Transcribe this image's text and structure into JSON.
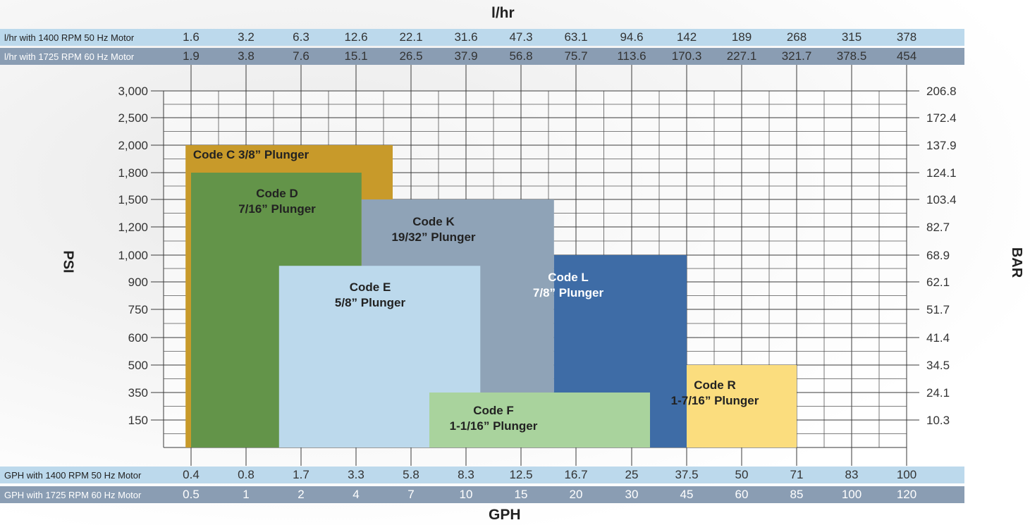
{
  "top_axis_title": "l/hr",
  "bottom_axis_title": "GPH",
  "left_axis_title": "PSI",
  "right_axis_title": "BAR",
  "bands": {
    "lhr_50hz": {
      "label": "l/hr with 1400 RPM 50 Hz Motor",
      "values": [
        "1.6",
        "3.2",
        "6.3",
        "12.6",
        "22.1",
        "31.6",
        "47.3",
        "63.1",
        "94.6",
        "142",
        "189",
        "268",
        "315",
        "378"
      ]
    },
    "lhr_60hz": {
      "label": "l/hr with 1725 RPM 60 Hz Motor",
      "values": [
        "1.9",
        "3.8",
        "7.6",
        "15.1",
        "26.5",
        "37.9",
        "56.8",
        "75.7",
        "113.6",
        "170.3",
        "227.1",
        "321.7",
        "378.5",
        "454"
      ]
    },
    "gph_50hz": {
      "label": "GPH with 1400 RPM 50 Hz Motor",
      "values": [
        "0.4",
        "0.8",
        "1.7",
        "3.3",
        "5.8",
        "8.3",
        "12.5",
        "16.7",
        "25",
        "37.5",
        "50",
        "71",
        "83",
        "100"
      ]
    },
    "gph_60hz": {
      "label": "GPH with 1725 RPM 60 Hz Motor",
      "values": [
        "0.5",
        "1",
        "2",
        "4",
        "7",
        "10",
        "15",
        "20",
        "30",
        "45",
        "60",
        "85",
        "100",
        "120"
      ]
    }
  },
  "chart_data": {
    "type": "bar",
    "x_ticks_gph_60hz": [
      "0.5",
      "1",
      "2",
      "4",
      "7",
      "10",
      "15",
      "20",
      "30",
      "45",
      "60",
      "85",
      "100",
      "120"
    ],
    "y_ticks_psi": [
      "3,000",
      "2,500",
      "2,000",
      "1,800",
      "1,500",
      "1,200",
      "1,000",
      "900",
      "750",
      "600",
      "500",
      "350",
      "150"
    ],
    "y_ticks_bar": [
      "206.8",
      "172.4",
      "137.9",
      "124.1",
      "103.4",
      "82.7",
      "68.9",
      "62.1",
      "51.7",
      "41.4",
      "34.5",
      "24.1",
      "10.3"
    ],
    "grid": true,
    "x_min_gph_60hz": 0.45,
    "series": [
      {
        "name": "Code C 3/8” Plunger",
        "label_lines": [
          "Code C  3/8” Plunger"
        ],
        "gph_60hz_min": 0.45,
        "gph_60hz_max": 6.0,
        "psi_max": "2,000",
        "color": "#c89a2a"
      },
      {
        "name": "Code D 7/16” Plunger",
        "label_lines": [
          "Code D",
          "7/16” Plunger"
        ],
        "gph_60hz_min": 0.5,
        "gph_60hz_max": 4.3,
        "psi_max": "1,800",
        "color": "#639449"
      },
      {
        "name": "Code K 19/32” Plunger",
        "label_lines": [
          "Code K",
          "19/32” Plunger"
        ],
        "gph_60hz_min": 4.3,
        "gph_60hz_max": 18.0,
        "psi_max": "1,500",
        "color": "#8fa3b7"
      },
      {
        "name": "Code E 5/8” Plunger",
        "label_lines": [
          "Code E",
          "5/8” Plunger"
        ],
        "gph_60hz_min": 1.6,
        "gph_60hz_max": 11.3,
        "psi_max": "960",
        "color": "#bcd9ec"
      },
      {
        "name": "Code L 7/8” Plunger",
        "label_lines": [
          "Code L",
          "7/8” Plunger"
        ],
        "gph_60hz_min": 18.0,
        "gph_60hz_max": 45.0,
        "psi_max": "1,000",
        "color": "#3e6ca6"
      },
      {
        "name": "Code F 1-1/16” Plunger",
        "label_lines": [
          "Code F",
          "1-1/16” Plunger"
        ],
        "gph_60hz_min": 8.0,
        "gph_60hz_max": 35.0,
        "psi_max": "350",
        "color": "#a9d39d"
      },
      {
        "name": "Code R 1-7/16” Plunger",
        "label_lines": [
          "Code R",
          "1-7/16” Plunger"
        ],
        "gph_60hz_min": 45.0,
        "gph_60hz_max": 85.0,
        "psi_max": "500",
        "color": "#fbdd7e"
      }
    ]
  }
}
